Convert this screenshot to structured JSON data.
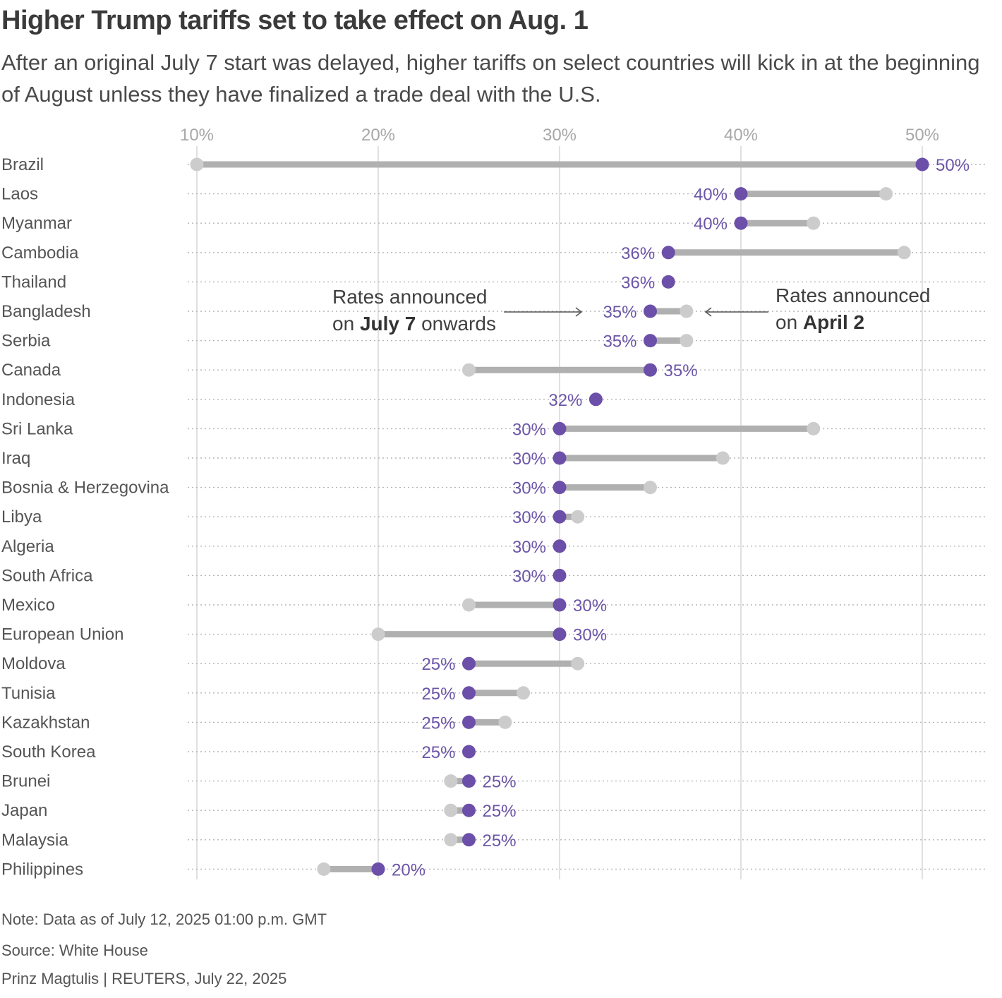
{
  "title": "Higher Trump tariffs set to take effect on Aug. 1",
  "subtitle": "After an original July 7 start was delayed, higher tariffs on select countries will kick in at the beginning of August unless they have finalized a trade deal with the U.S.",
  "colors": {
    "new_rate": "#6b4fa8",
    "old_rate": "#cccccc",
    "bar": "#b0b0b0",
    "grid": "#cfcfcf",
    "label": "#6b55a8"
  },
  "annotations": {
    "july": {
      "line1": "Rates announced",
      "line2_pre": "on ",
      "line2_bold": "July 7",
      "line2_post": " onwards"
    },
    "april": {
      "line1": "Rates announced",
      "line2_pre": "on ",
      "line2_bold": "April 2"
    }
  },
  "chart_data": {
    "type": "dumbbell",
    "xlim": [
      10,
      50
    ],
    "ticks": [
      10,
      20,
      30,
      40,
      50
    ],
    "tick_labels": [
      "10%",
      "20%",
      "30%",
      "40%",
      "50%"
    ],
    "series": [
      {
        "name": "Rates announced on April 2",
        "key": "april"
      },
      {
        "name": "Rates announced on July 7 onwards",
        "key": "july"
      }
    ],
    "rows": [
      {
        "country": "Brazil",
        "april": 10,
        "july": 50,
        "label": "50%",
        "label_side": "right"
      },
      {
        "country": "Laos",
        "april": 48,
        "july": 40,
        "label": "40%",
        "label_side": "left"
      },
      {
        "country": "Myanmar",
        "april": 44,
        "july": 40,
        "label": "40%",
        "label_side": "left"
      },
      {
        "country": "Cambodia",
        "april": 49,
        "july": 36,
        "label": "36%",
        "label_side": "left"
      },
      {
        "country": "Thailand",
        "april": 36,
        "july": 36,
        "label": "36%",
        "label_side": "left"
      },
      {
        "country": "Bangladesh",
        "april": 37,
        "july": 35,
        "label": "35%",
        "label_side": "left"
      },
      {
        "country": "Serbia",
        "april": 37,
        "july": 35,
        "label": "35%",
        "label_side": "left"
      },
      {
        "country": "Canada",
        "april": 25,
        "july": 35,
        "label": "35%",
        "label_side": "right"
      },
      {
        "country": "Indonesia",
        "april": 32,
        "july": 32,
        "label": "32%",
        "label_side": "left"
      },
      {
        "country": "Sri Lanka",
        "april": 44,
        "july": 30,
        "label": "30%",
        "label_side": "left"
      },
      {
        "country": "Iraq",
        "april": 39,
        "july": 30,
        "label": "30%",
        "label_side": "left"
      },
      {
        "country": "Bosnia & Herzegovina",
        "april": 35,
        "july": 30,
        "label": "30%",
        "label_side": "left"
      },
      {
        "country": "Libya",
        "april": 31,
        "july": 30,
        "label": "30%",
        "label_side": "left"
      },
      {
        "country": "Algeria",
        "april": 30,
        "july": 30,
        "label": "30%",
        "label_side": "left"
      },
      {
        "country": "South Africa",
        "april": 30,
        "july": 30,
        "label": "30%",
        "label_side": "left"
      },
      {
        "country": "Mexico",
        "april": 25,
        "july": 30,
        "label": "30%",
        "label_side": "right"
      },
      {
        "country": "European Union",
        "april": 20,
        "july": 30,
        "label": "30%",
        "label_side": "right"
      },
      {
        "country": "Moldova",
        "april": 31,
        "july": 25,
        "label": "25%",
        "label_side": "left"
      },
      {
        "country": "Tunisia",
        "april": 28,
        "july": 25,
        "label": "25%",
        "label_side": "left"
      },
      {
        "country": "Kazakhstan",
        "april": 27,
        "july": 25,
        "label": "25%",
        "label_side": "left"
      },
      {
        "country": "South Korea",
        "april": 25,
        "july": 25,
        "label": "25%",
        "label_side": "left"
      },
      {
        "country": "Brunei",
        "april": 24,
        "july": 25,
        "label": "25%",
        "label_side": "right"
      },
      {
        "country": "Japan",
        "april": 24,
        "july": 25,
        "label": "25%",
        "label_side": "right"
      },
      {
        "country": "Malaysia",
        "april": 24,
        "july": 25,
        "label": "25%",
        "label_side": "right"
      },
      {
        "country": "Philippines",
        "april": 17,
        "july": 20,
        "label": "20%",
        "label_side": "right"
      }
    ]
  },
  "footer": {
    "note": "Note: Data as of July 12, 2025 01:00 p.m. GMT",
    "source": "Source: White House",
    "credit": "Prinz Magtulis | REUTERS, July 22, 2025"
  }
}
